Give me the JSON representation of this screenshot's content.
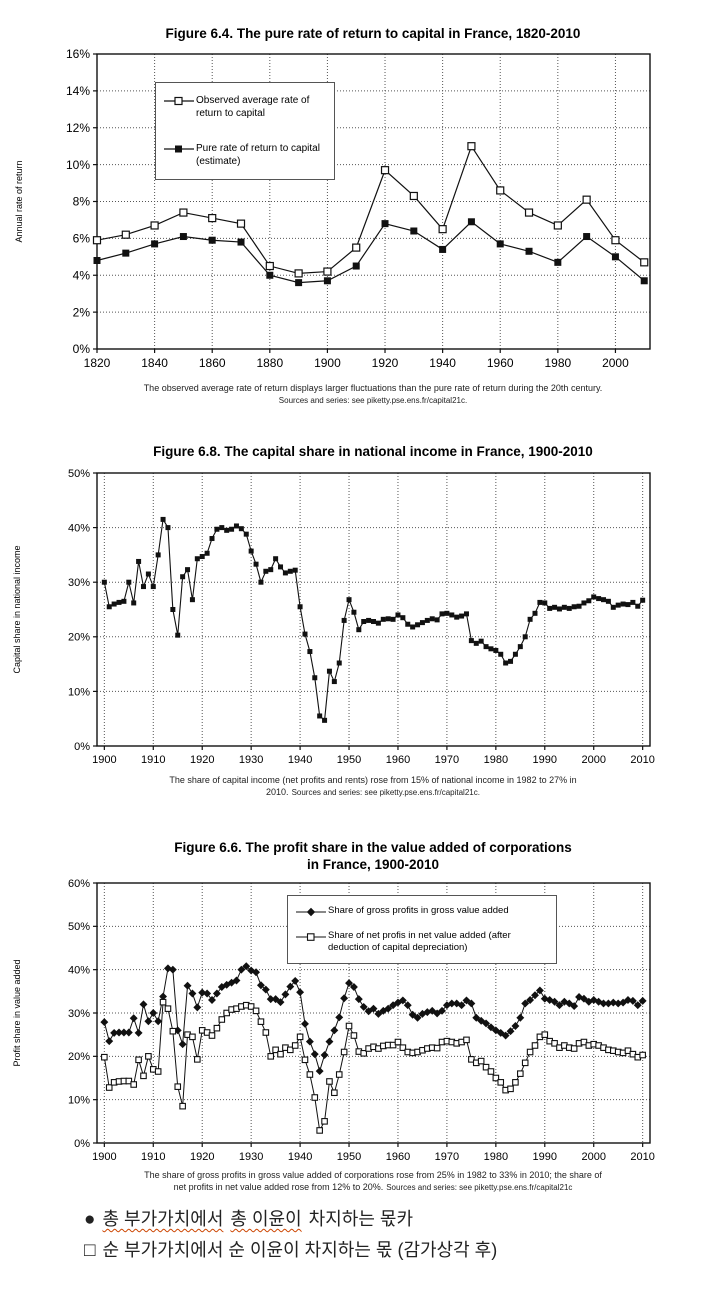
{
  "chart_data": [
    {
      "type": "line",
      "title": "Figure 6.4. The pure rate of return to capital in France, 1820-2010",
      "title_line2": "",
      "ylabel": "Annual rate of return",
      "ylim": [
        0,
        16
      ],
      "ytick_step": 2,
      "ytick_suffix": "%",
      "yticks": [
        "0%",
        "2%",
        "4%",
        "6%",
        "8%",
        "10%",
        "12%",
        "14%",
        "16%"
      ],
      "xticks": [
        1820,
        1840,
        1860,
        1880,
        1900,
        1920,
        1940,
        1960,
        1980,
        2000
      ],
      "x": [
        1820,
        1830,
        1840,
        1850,
        1860,
        1870,
        1880,
        1890,
        1900,
        1910,
        1920,
        1930,
        1940,
        1950,
        1960,
        1970,
        1980,
        1990,
        2000,
        2010
      ],
      "grid": "dotted",
      "legend_position": "upper-left",
      "series": [
        {
          "name": "Observed average rate of return to capital",
          "marker": "square-open",
          "values": [
            5.9,
            6.2,
            6.7,
            7.4,
            7.1,
            6.8,
            4.5,
            4.1,
            4.2,
            5.5,
            9.7,
            8.3,
            6.5,
            11.0,
            8.6,
            7.4,
            6.7,
            8.1,
            5.9,
            4.7
          ]
        },
        {
          "name": "Pure rate of return to capital (estimate)",
          "marker": "square-filled",
          "values": [
            4.8,
            5.2,
            5.7,
            6.1,
            5.9,
            5.8,
            4.0,
            3.6,
            3.7,
            4.5,
            6.8,
            6.4,
            5.4,
            6.9,
            5.7,
            5.3,
            4.7,
            6.1,
            5.0,
            3.7
          ]
        }
      ],
      "caption_line1": "The observed average rate of return displays larger fluctuations than the pure rate of return during the 20th century.",
      "caption_line2": "",
      "caption_sources": "Sources and series: see piketty.pse.ens.fr/capital21c."
    },
    {
      "type": "line",
      "title": "Figure 6.8. The capital share in national income in France, 1900-2010",
      "title_line2": "",
      "ylabel": "Capital share in national income",
      "ylim": [
        0,
        50
      ],
      "ytick_step": 10,
      "ytick_suffix": "%",
      "yticks": [
        "0%",
        "10%",
        "20%",
        "30%",
        "40%",
        "50%"
      ],
      "xticks": [
        1900,
        1910,
        1920,
        1930,
        1940,
        1950,
        1960,
        1970,
        1980,
        1990,
        2000,
        2010
      ],
      "x_start": 1900,
      "x_step": 1,
      "grid": "dotted",
      "legend_position": "none",
      "series": [
        {
          "name": "Capital share in national income",
          "marker": "square-filled",
          "values": [
            30,
            25.5,
            26,
            26.3,
            26.5,
            30,
            26.2,
            33.8,
            29.2,
            31.5,
            29.2,
            35,
            41.5,
            40,
            25,
            20.3,
            31,
            32.3,
            26.8,
            34.3,
            34.7,
            35.3,
            38,
            39.7,
            40,
            39.5,
            39.7,
            40.3,
            39.8,
            38.8,
            35.7,
            33.3,
            30,
            32,
            32.3,
            34.3,
            32.8,
            31.7,
            32,
            32.2,
            25.5,
            20.5,
            17.3,
            12.5,
            5.5,
            4.7,
            13.7,
            11.8,
            15.2,
            23,
            26.8,
            24.5,
            21.3,
            22.8,
            23,
            22.8,
            22.5,
            23.2,
            23.3,
            23.2,
            24,
            23.5,
            22.3,
            21.8,
            22.2,
            22.6,
            23,
            23.3,
            23.1,
            24.2,
            24.3,
            24,
            23.6,
            23.8,
            24.2,
            19.3,
            18.8,
            19.2,
            18.2,
            17.8,
            17.5,
            16.8,
            15.2,
            15.5,
            16.8,
            18.2,
            20,
            23.2,
            24.3,
            26.3,
            26.2,
            25.2,
            25.4,
            25.1,
            25.4,
            25.2,
            25.5,
            25.6,
            26.2,
            26.6,
            27.3,
            27,
            26.8,
            26.5,
            25.4,
            25.8,
            26,
            25.9,
            26.3,
            25.6,
            26.7
          ]
        }
      ],
      "caption_line1": "The share of capital income (net profits and rents) rose from 15% of national income in 1982 to 27% in",
      "caption_line2": "2010.",
      "caption_sources": "Sources and series: see piketty.pse.ens.fr/capital21c."
    },
    {
      "type": "line",
      "title": "Figure 6.6. The profit share in the value added of corporations",
      "title_line2": "in France, 1900-2010",
      "ylabel": "Profit share in value added",
      "ylim": [
        0,
        60
      ],
      "ytick_step": 10,
      "ytick_suffix": "%",
      "yticks": [
        "0%",
        "10%",
        "20%",
        "30%",
        "40%",
        "50%",
        "60%"
      ],
      "xticks": [
        1900,
        1910,
        1920,
        1930,
        1940,
        1950,
        1960,
        1970,
        1980,
        1990,
        2000,
        2010
      ],
      "x_start": 1900,
      "x_step": 1,
      "grid": "dotted",
      "legend_position": "upper-center",
      "series": [
        {
          "name": "Share of gross profits in gross value added",
          "marker": "diamond-filled",
          "values": [
            27.9,
            23.5,
            25.4,
            25.5,
            25.5,
            25.5,
            28.8,
            25.4,
            32,
            28.1,
            30,
            28.1,
            33.8,
            40.3,
            40,
            26,
            22.8,
            36.3,
            34.5,
            31.3,
            34.7,
            34.5,
            33,
            34.5,
            36,
            36.5,
            37,
            37.5,
            40,
            40.8,
            39.8,
            39.4,
            36.4,
            35.4,
            33.2,
            33.2,
            32.5,
            34.3,
            36.1,
            37.4,
            34.8,
            27.5,
            23.4,
            20.5,
            16.6,
            20.3,
            23.4,
            26,
            29,
            33.4,
            36.9,
            36,
            33.2,
            31.4,
            30.4,
            31,
            29.8,
            30.5,
            31,
            31.8,
            32.4,
            32.9,
            31.8,
            29.6,
            28.9,
            29.8,
            30.2,
            30.5,
            29.9,
            30.5,
            31.8,
            32.2,
            32.2,
            31.8,
            32.9,
            32.2,
            28.9,
            28.2,
            27.6,
            26.7,
            26,
            25.4,
            24.8,
            25.8,
            27,
            28.9,
            32.2,
            33,
            34.1,
            35.2,
            33.3,
            33,
            32.6,
            31.8,
            32.6,
            32.2,
            31.6,
            33.7,
            33.3,
            32.6,
            33,
            32.6,
            32.2,
            32.2,
            32.4,
            32.2,
            32.4,
            33,
            32.8,
            31.8,
            32.8
          ]
        },
        {
          "name": "Share of net profis in net value added (after deduction of capital depreciation)",
          "marker": "square-open",
          "values": [
            19.8,
            12.8,
            14,
            14.2,
            14.3,
            14.3,
            13.5,
            19.2,
            15.5,
            20,
            17,
            16.5,
            32.5,
            31,
            25.8,
            13,
            8.5,
            25,
            24.5,
            19.3,
            26,
            25.5,
            24.8,
            26.5,
            28.5,
            30,
            30.8,
            31,
            31.5,
            31.8,
            31.5,
            30.5,
            28,
            25.5,
            20,
            21.5,
            20.5,
            22,
            21.5,
            22.5,
            24.5,
            19.2,
            15.8,
            10.5,
            2.9,
            5,
            14.2,
            11.6,
            15.8,
            21,
            27,
            24.8,
            21.1,
            20.7,
            21.8,
            22.2,
            21.8,
            22.4,
            22.6,
            22.6,
            23.3,
            22,
            21,
            20.8,
            21,
            21.4,
            21.8,
            22,
            21.9,
            23.3,
            23.5,
            23.3,
            23,
            23.3,
            23.8,
            19.3,
            18.5,
            18.9,
            17.5,
            16.5,
            15,
            14,
            12.2,
            12.5,
            14,
            16,
            18.5,
            21,
            22.5,
            24.5,
            25,
            23.5,
            23,
            22,
            22.5,
            22,
            21.8,
            23,
            23.3,
            22.5,
            22.8,
            22.5,
            22,
            21.5,
            21.3,
            21,
            20.8,
            21.3,
            20.5,
            19.8,
            20.3
          ]
        }
      ],
      "caption_line1": "The share of gross profits in gross value added of corporations rose from 25% in 1982 to 33% in 2010; the share of",
      "caption_line2": "net profits in net value added rose from 12% to 20%.",
      "caption_sources": "Sources and series: see piketty.pse.ens.fr/capital21c"
    }
  ],
  "footnotes": {
    "line1_bullet": "●",
    "line1_seg1": "총 부가가치에서",
    "line1_seg2": "총 이윤이",
    "line1_seg3": "차지하는 몫카",
    "line2_bullet": "□",
    "line2_text": "순 부가가치에서 순 이윤이 차지하는 몫 (감가상각 후)",
    "spellcheck_underline_color": "#cc4400"
  }
}
